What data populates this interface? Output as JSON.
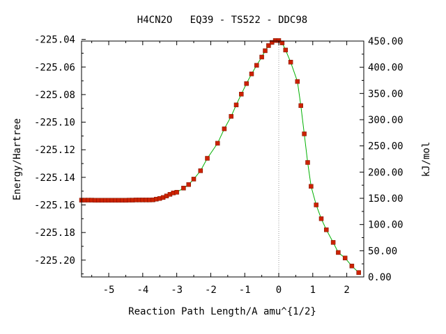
{
  "chart_data": {
    "type": "line",
    "title": "H4CN2O   EQ39 - TS522 - DDC98",
    "xlabel": "Reaction Path Length/A amu^{1/2}",
    "ylabel": "Energy/Hartree",
    "y2label": "kJ/mol",
    "xlim": [
      -5.8,
      2.5
    ],
    "ylim": [
      -225.2122,
      -225.0412
    ],
    "y2lim": [
      0,
      450
    ],
    "x_ticks": [
      -5,
      -4,
      -3,
      -2,
      -1,
      0,
      1,
      2
    ],
    "x_tick_labels": [
      "-5",
      "-4",
      "-3",
      "-2",
      "-1",
      "0",
      "1",
      "2"
    ],
    "y_ticks": [
      -225.04,
      -225.06,
      -225.08,
      -225.1,
      -225.12,
      -225.14,
      -225.16,
      -225.18,
      -225.2
    ],
    "y_tick_labels": [
      "-225.04",
      "-225.06",
      "-225.08",
      "-225.10",
      "-225.12",
      "-225.14",
      "-225.16",
      "-225.18",
      "-225.20"
    ],
    "y2_ticks": [
      0,
      50,
      100,
      150,
      200,
      250,
      300,
      350,
      400,
      450
    ],
    "y2_tick_labels": [
      "0.00",
      "50.00",
      "100.00",
      "150.00",
      "200.00",
      "250.00",
      "300.00",
      "350.00",
      "400.00",
      "450.00"
    ],
    "ts_marker_x": 0,
    "grid": false,
    "colors": {
      "line": "#00b000",
      "marker": "#cc2200",
      "marker_edge": "#7a1100",
      "marker_line": "#999999"
    },
    "series": [
      {
        "x": [
          -5.8,
          -5.7,
          -5.6,
          -5.5,
          -5.4,
          -5.3,
          -5.2,
          -5.1,
          -5.0,
          -4.9,
          -4.8,
          -4.7,
          -4.6,
          -4.5,
          -4.4,
          -4.3,
          -4.2,
          -4.1,
          -4.0,
          -3.9,
          -3.8,
          -3.7,
          -3.6,
          -3.5,
          -3.4,
          -3.3,
          -3.2,
          -3.1,
          -3.0,
          -2.8,
          -2.65,
          -2.5,
          -2.3,
          -2.1,
          -1.8,
          -1.6,
          -1.4,
          -1.25,
          -1.1,
          -0.95,
          -0.8,
          -0.65,
          -0.5,
          -0.4,
          -0.3,
          -0.2,
          -0.1,
          0.0,
          0.1,
          0.2,
          0.35,
          0.55,
          0.65,
          0.75,
          0.85,
          0.95,
          1.1,
          1.25,
          1.4,
          1.6,
          1.75,
          1.95,
          2.15,
          2.35
        ],
        "y": [
          -225.1565,
          -225.1565,
          -225.1565,
          -225.1565,
          -225.1566,
          -225.1566,
          -225.1566,
          -225.1566,
          -225.1566,
          -225.1566,
          -225.1566,
          -225.1566,
          -225.1566,
          -225.1566,
          -225.1565,
          -225.1565,
          -225.1564,
          -225.1564,
          -225.1564,
          -225.1564,
          -225.1564,
          -225.1563,
          -225.1558,
          -225.1553,
          -225.1546,
          -225.1535,
          -225.1523,
          -225.1513,
          -225.1508,
          -225.1478,
          -225.1452,
          -225.1413,
          -225.1352,
          -225.1262,
          -225.1153,
          -225.1048,
          -225.0958,
          -225.0875,
          -225.0797,
          -225.072,
          -225.065,
          -225.0588,
          -225.0528,
          -225.0482,
          -225.0445,
          -225.0422,
          -225.0408,
          -225.0408,
          -225.0425,
          -225.0477,
          -225.0565,
          -225.0705,
          -225.088,
          -225.1085,
          -225.1292,
          -225.1465,
          -225.16,
          -225.17,
          -225.178,
          -225.1872,
          -225.1945,
          -225.1985,
          -225.2043,
          -225.209
        ]
      }
    ]
  }
}
